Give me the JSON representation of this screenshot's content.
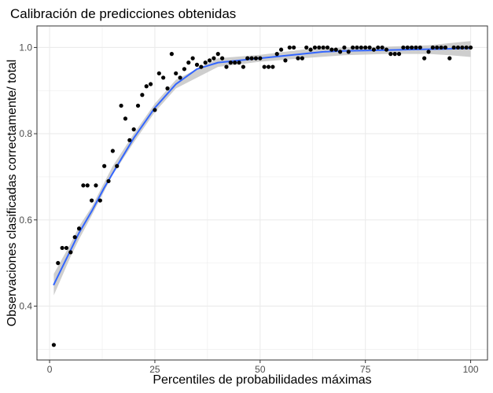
{
  "chart_data": {
    "type": "scatter",
    "title": "Calibración de predicciones obtenidas",
    "xlabel": "Percentiles de probabilidades máximas",
    "ylabel": "Observaciones clasificadas correctamente/ total",
    "xlim": [
      -3,
      104
    ],
    "ylim": [
      0.275,
      1.05
    ],
    "x_ticks": [
      0,
      25,
      50,
      75,
      100
    ],
    "x_tick_labels": [
      "0",
      "25",
      "50",
      "75",
      "100"
    ],
    "y_ticks": [
      0.4,
      0.6,
      0.8,
      1.0
    ],
    "y_tick_labels": [
      "0.4",
      "0.6",
      "0.8",
      "1.0"
    ],
    "grid": true,
    "legend": "none",
    "colors": {
      "points": "#000000",
      "smooth": "#3366ff",
      "band": "#bdbdbd",
      "grid": "#ebebeb",
      "border": "#333333"
    },
    "points": {
      "x": [
        1,
        2,
        3,
        4,
        5,
        6,
        7,
        8,
        9,
        10,
        11,
        12,
        13,
        14,
        15,
        16,
        17,
        18,
        19,
        20,
        21,
        22,
        23,
        24,
        25,
        26,
        27,
        28,
        29,
        30,
        31,
        32,
        33,
        34,
        35,
        36,
        37,
        38,
        39,
        40,
        41,
        42,
        43,
        44,
        45,
        46,
        47,
        48,
        49,
        50,
        51,
        52,
        53,
        54,
        55,
        56,
        57,
        58,
        59,
        60,
        61,
        62,
        63,
        64,
        65,
        66,
        67,
        68,
        69,
        70,
        71,
        72,
        73,
        74,
        75,
        76,
        77,
        78,
        79,
        80,
        81,
        82,
        83,
        84,
        85,
        86,
        87,
        88,
        89,
        90,
        91,
        92,
        93,
        94,
        95,
        96,
        97,
        98,
        99,
        100
      ],
      "y": [
        0.31,
        0.5,
        0.535,
        0.535,
        0.525,
        0.56,
        0.58,
        0.68,
        0.68,
        0.645,
        0.68,
        0.645,
        0.725,
        0.69,
        0.76,
        0.725,
        0.865,
        0.835,
        0.785,
        0.81,
        0.865,
        0.89,
        0.91,
        0.915,
        0.855,
        0.94,
        0.93,
        0.905,
        0.985,
        0.94,
        0.93,
        0.95,
        0.965,
        0.975,
        0.96,
        0.955,
        0.965,
        0.97,
        0.975,
        0.985,
        0.975,
        0.955,
        0.965,
        0.965,
        0.965,
        0.955,
        0.975,
        0.975,
        0.975,
        0.975,
        0.955,
        0.955,
        0.955,
        0.985,
        0.995,
        0.97,
        1.0,
        1.0,
        0.975,
        0.975,
        1.0,
        0.995,
        1.0,
        1.0,
        1.0,
        1.0,
        0.995,
        0.995,
        0.99,
        1.0,
        0.99,
        1.0,
        1.0,
        1.0,
        1.0,
        1.0,
        0.995,
        1.0,
        1.0,
        0.995,
        0.985,
        0.985,
        0.985,
        1.0,
        1.0,
        1.0,
        1.0,
        1.0,
        0.975,
        0.99,
        1.0,
        1.0,
        1.0,
        1.0,
        0.975,
        1.0,
        1.0,
        1.0,
        1.0,
        1.0
      ]
    },
    "smooth": {
      "x": [
        1,
        3,
        5,
        7,
        10,
        13,
        16,
        20,
        25,
        30,
        35,
        40,
        45,
        50,
        55,
        60,
        65,
        70,
        75,
        80,
        85,
        90,
        95,
        100
      ],
      "y": [
        0.45,
        0.49,
        0.53,
        0.57,
        0.62,
        0.675,
        0.725,
        0.79,
        0.86,
        0.915,
        0.95,
        0.965,
        0.97,
        0.975,
        0.98,
        0.985,
        0.99,
        0.992,
        0.993,
        0.994,
        0.995,
        0.996,
        0.997,
        0.998
      ]
    },
    "band": {
      "x": [
        1,
        3,
        5,
        7,
        10,
        15,
        20,
        25,
        30,
        40,
        50,
        60,
        70,
        80,
        90,
        95,
        100
      ],
      "lower": [
        0.425,
        0.47,
        0.515,
        0.555,
        0.61,
        0.705,
        0.78,
        0.85,
        0.905,
        0.955,
        0.967,
        0.975,
        0.982,
        0.985,
        0.985,
        0.982,
        0.978
      ],
      "upper": [
        0.475,
        0.51,
        0.545,
        0.585,
        0.63,
        0.725,
        0.8,
        0.87,
        0.925,
        0.975,
        0.983,
        0.995,
        1.0,
        1.002,
        1.005,
        1.01,
        1.015
      ]
    }
  }
}
